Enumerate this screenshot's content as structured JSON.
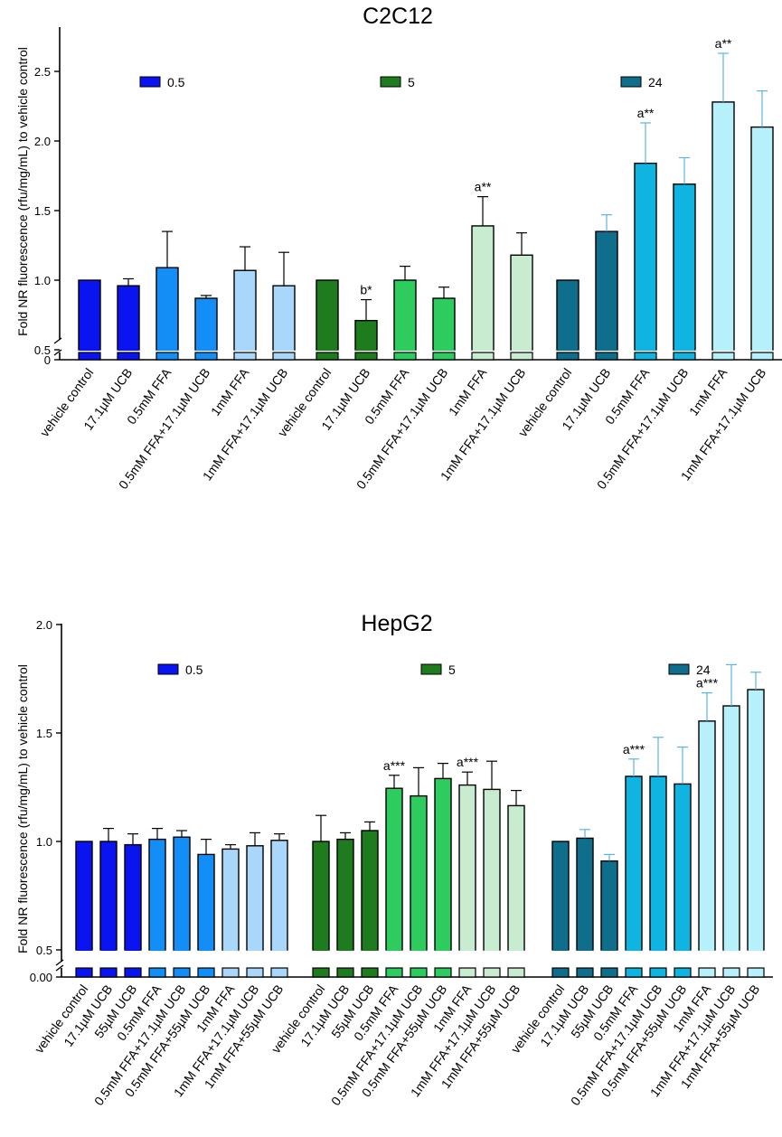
{
  "chart_data": [
    {
      "type": "bar",
      "title": "C2C12",
      "ylabel": "Fold NR fluorescence (rfu/mg/mL) to vehicle control",
      "ylim": [
        0,
        2.7
      ],
      "axis_break": [
        0.05,
        0.5
      ],
      "yticks": [
        {
          "v": 0,
          "label": "0"
        },
        {
          "v": 0.5,
          "label": "0.5"
        },
        {
          "v": 1.0,
          "label": "1.0"
        },
        {
          "v": 1.5,
          "label": "1.5"
        },
        {
          "v": 2.0,
          "label": "2.0"
        },
        {
          "v": 2.5,
          "label": "2.5"
        }
      ],
      "legend": [
        {
          "label": "0.5",
          "color": "#0a14f0"
        },
        {
          "label": "5",
          "color": "#1e7b1e"
        },
        {
          "label": "24",
          "color": "#0e6e8c"
        }
      ],
      "groups": [
        {
          "name": "0.5",
          "bars": [
            {
              "label": "vehicle control",
              "value": 1.0,
              "error": 0,
              "color": "#0a14f0",
              "annotation": ""
            },
            {
              "label": "17.1µM UCB",
              "value": 0.96,
              "error": 0.05,
              "color": "#0a14f0",
              "annotation": ""
            },
            {
              "label": "0.5mM FFA",
              "value": 1.09,
              "error": 0.26,
              "color": "#148ef7",
              "annotation": ""
            },
            {
              "label": "0.5mM FFA+17.1µM UCB",
              "value": 0.87,
              "error": 0.02,
              "color": "#148ef7",
              "annotation": ""
            },
            {
              "label": "1mM FFA",
              "value": 1.07,
              "error": 0.17,
              "color": "#a9d6fb",
              "annotation": ""
            },
            {
              "label": "1mM FFA+17.1µM UCB",
              "value": 0.96,
              "error": 0.24,
              "color": "#a9d6fb",
              "annotation": ""
            }
          ]
        },
        {
          "name": "5",
          "bars": [
            {
              "label": "vehicle control",
              "value": 1.0,
              "error": 0,
              "color": "#1e7b1e",
              "annotation": ""
            },
            {
              "label": "17.1µM UCB",
              "value": 0.71,
              "error": 0.15,
              "color": "#1e7b1e",
              "annotation": "b*"
            },
            {
              "label": "0.5mM FFA",
              "value": 1.0,
              "error": 0.1,
              "color": "#2ecc5e",
              "annotation": ""
            },
            {
              "label": "0.5mM FFA+17.1µM UCB",
              "value": 0.87,
              "error": 0.08,
              "color": "#2ecc5e",
              "annotation": ""
            },
            {
              "label": "1mM FFA",
              "value": 1.39,
              "error": 0.21,
              "color": "#c8ecd0",
              "annotation": "a**"
            },
            {
              "label": "1mM FFA+17.1µM UCB",
              "value": 1.18,
              "error": 0.16,
              "color": "#c8ecd0",
              "annotation": ""
            }
          ]
        },
        {
          "name": "24",
          "bars": [
            {
              "label": "vehicle control",
              "value": 1.0,
              "error": 0,
              "color": "#0e6e8c",
              "annotation": ""
            },
            {
              "label": "17.1µM UCB",
              "value": 1.35,
              "error": 0.12,
              "color": "#0e6e8c",
              "annotation": ""
            },
            {
              "label": "0.5mM FFA",
              "value": 1.84,
              "error": 0.29,
              "color": "#0fb4e0",
              "annotation": "a**"
            },
            {
              "label": "0.5mM FFA+17.1µM UCB",
              "value": 1.69,
              "error": 0.19,
              "color": "#0fb4e0",
              "annotation": ""
            },
            {
              "label": "1mM FFA",
              "value": 2.28,
              "error": 0.35,
              "color": "#b6f1fb",
              "annotation": "a**"
            },
            {
              "label": "1mM FFA+17.1µM UCB",
              "value": 2.1,
              "error": 0.26,
              "color": "#b6f1fb",
              "annotation": ""
            }
          ]
        }
      ]
    },
    {
      "type": "bar",
      "title": "HepG2",
      "ylabel": "Fold NR fluorescence (rfu/mg/mL) to vehicle control",
      "ylim": [
        0,
        2.0
      ],
      "axis_break": [
        0.05,
        0.5
      ],
      "yticks": [
        {
          "v": 0,
          "label": "0.00"
        },
        {
          "v": 0.5,
          "label": "0.5"
        },
        {
          "v": 1.0,
          "label": "1.0"
        },
        {
          "v": 1.5,
          "label": "1.5"
        },
        {
          "v": 2.0,
          "label": "2.0"
        }
      ],
      "legend": [
        {
          "label": "0.5",
          "color": "#0a14f0"
        },
        {
          "label": "5",
          "color": "#1e7b1e"
        },
        {
          "label": "24",
          "color": "#0e6e8c"
        }
      ],
      "groups": [
        {
          "name": "0.5",
          "bars": [
            {
              "label": "vehicle control",
              "value": 1.0,
              "error": 0,
              "color": "#0a14f0",
              "annotation": ""
            },
            {
              "label": "17.1µM UCB",
              "value": 1.0,
              "error": 0.06,
              "color": "#0a14f0",
              "annotation": ""
            },
            {
              "label": "55µM UCB",
              "value": 0.985,
              "error": 0.05,
              "color": "#0a14f0",
              "annotation": ""
            },
            {
              "label": "0.5mM FFA",
              "value": 1.01,
              "error": 0.05,
              "color": "#148ef7",
              "annotation": ""
            },
            {
              "label": "0.5mM FFA+17.1µM UCB",
              "value": 1.02,
              "error": 0.03,
              "color": "#148ef7",
              "annotation": ""
            },
            {
              "label": "0.5mM FFA+55µM UCB",
              "value": 0.94,
              "error": 0.07,
              "color": "#148ef7",
              "annotation": ""
            },
            {
              "label": "1mM FFA",
              "value": 0.965,
              "error": 0.02,
              "color": "#a9d6fb",
              "annotation": ""
            },
            {
              "label": "1mM FFA+17.1µM UCB",
              "value": 0.98,
              "error": 0.06,
              "color": "#a9d6fb",
              "annotation": ""
            },
            {
              "label": "1mM FFA+55µM UCB",
              "value": 1.005,
              "error": 0.03,
              "color": "#a9d6fb",
              "annotation": ""
            }
          ]
        },
        {
          "name": "5",
          "bars": [
            {
              "label": "vehicle control",
              "value": 1.0,
              "error": 0.12,
              "color": "#1e7b1e",
              "annotation": ""
            },
            {
              "label": "17.1µM UCB",
              "value": 1.01,
              "error": 0.03,
              "color": "#1e7b1e",
              "annotation": ""
            },
            {
              "label": "55µM UCB",
              "value": 1.05,
              "error": 0.04,
              "color": "#1e7b1e",
              "annotation": ""
            },
            {
              "label": "0.5mM FFA",
              "value": 1.245,
              "error": 0.06,
              "color": "#2ecc5e",
              "annotation": "a***"
            },
            {
              "label": "0.5mM FFA+17.1µM UCB",
              "value": 1.21,
              "error": 0.13,
              "color": "#2ecc5e",
              "annotation": ""
            },
            {
              "label": "0.5mM FFA+55µM UCB",
              "value": 1.29,
              "error": 0.07,
              "color": "#2ecc5e",
              "annotation": ""
            },
            {
              "label": "1mM FFA",
              "value": 1.26,
              "error": 0.06,
              "color": "#c8ecd0",
              "annotation": "a***"
            },
            {
              "label": "1mM FFA+17.1µM UCB",
              "value": 1.24,
              "error": 0.13,
              "color": "#c8ecd0",
              "annotation": ""
            },
            {
              "label": "1mM FFA+55µM UCB",
              "value": 1.165,
              "error": 0.07,
              "color": "#c8ecd0",
              "annotation": ""
            }
          ]
        },
        {
          "name": "24",
          "bars": [
            {
              "label": "vehicle control",
              "value": 1.0,
              "error": 0,
              "color": "#0e6e8c",
              "annotation": ""
            },
            {
              "label": "17.1µM UCB",
              "value": 1.015,
              "error": 0.04,
              "color": "#0e6e8c",
              "annotation": ""
            },
            {
              "label": "55µM UCB",
              "value": 0.91,
              "error": 0.03,
              "color": "#0e6e8c",
              "annotation": ""
            },
            {
              "label": "0.5mM FFA",
              "value": 1.3,
              "error": 0.08,
              "color": "#0fb4e0",
              "annotation": "a***"
            },
            {
              "label": "0.5mM FFA+17.1µM UCB",
              "value": 1.3,
              "error": 0.18,
              "color": "#0fb4e0",
              "annotation": ""
            },
            {
              "label": "0.5mM FFA+55µM UCB",
              "value": 1.265,
              "error": 0.17,
              "color": "#0fb4e0",
              "annotation": ""
            },
            {
              "label": "1mM FFA",
              "value": 1.555,
              "error": 0.13,
              "color": "#b6f1fb",
              "annotation": "a***"
            },
            {
              "label": "1mM FFA+17.1µM UCB",
              "value": 1.625,
              "error": 0.19,
              "color": "#b6f1fb",
              "annotation": ""
            },
            {
              "label": "1mM FFA+55µM UCB",
              "value": 1.7,
              "error": 0.08,
              "color": "#b6f1fb",
              "annotation": ""
            }
          ]
        }
      ]
    }
  ]
}
